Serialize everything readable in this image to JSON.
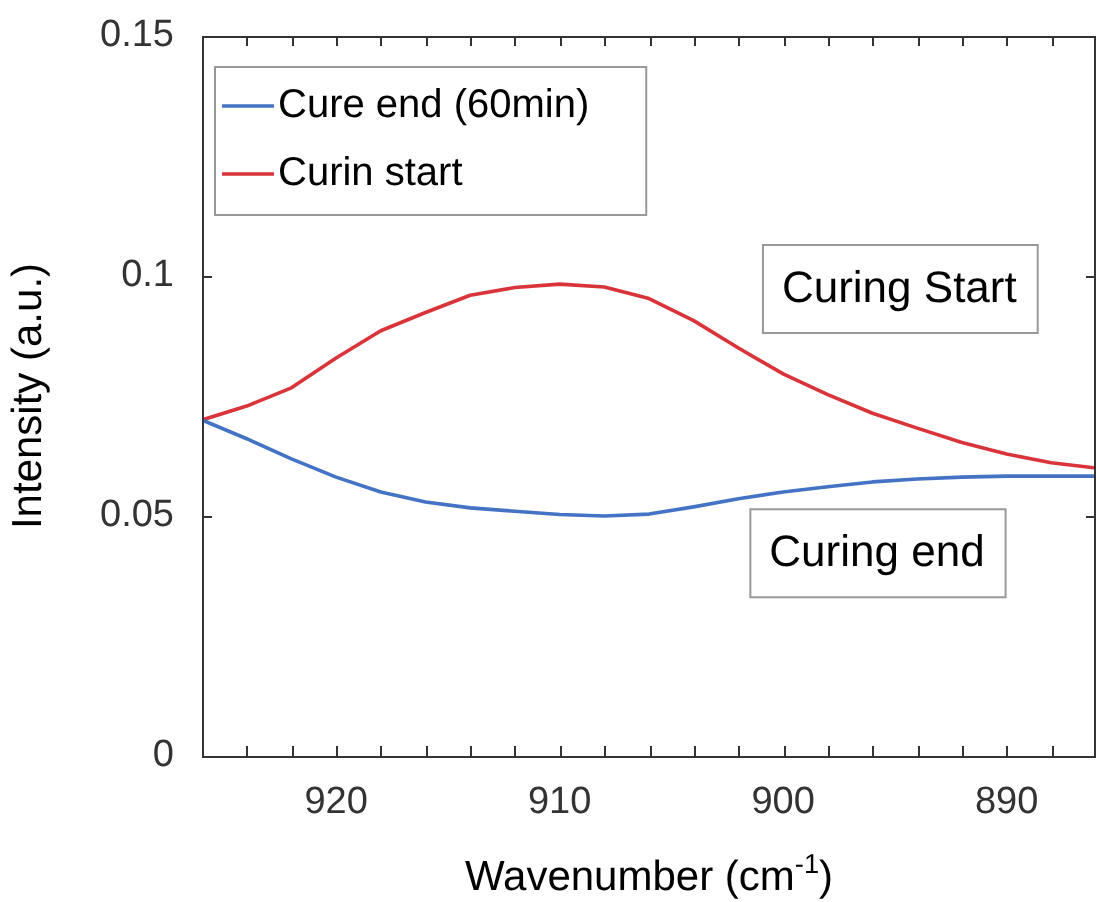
{
  "chart_data": {
    "type": "line",
    "xlabel": "Wavenumber (cm$^{-1}$)",
    "ylabel": "Intensity (a.u.)",
    "x": [
      926,
      924,
      922,
      920,
      918,
      916,
      914,
      912,
      910,
      908,
      906,
      904,
      902,
      900,
      898,
      896,
      894,
      892,
      890,
      888,
      886
    ],
    "series": [
      {
        "name": "Cure end (60min)",
        "color": "#4472c4",
        "values": [
          0.07,
          0.0661,
          0.0619,
          0.0581,
          0.055,
          0.0529,
          0.0517,
          0.051,
          0.0503,
          0.05,
          0.0504,
          0.0519,
          0.0536,
          0.055,
          0.0561,
          0.0571,
          0.0577,
          0.0581,
          0.0583,
          0.0583,
          0.0583
        ]
      },
      {
        "name": "Curin start",
        "color": "#d9343a",
        "values": [
          0.07,
          0.0729,
          0.0767,
          0.0829,
          0.0886,
          0.0924,
          0.096,
          0.0976,
          0.0983,
          0.0977,
          0.0953,
          0.0907,
          0.085,
          0.0796,
          0.0753,
          0.0714,
          0.0683,
          0.0653,
          0.0629,
          0.0611,
          0.06
        ]
      }
    ],
    "xlim": [
      926,
      886
    ],
    "xticks": [
      {
        "value": 924,
        "label": null
      },
      {
        "value": 922,
        "label": null
      },
      920,
      {
        "value": 918,
        "label": null
      },
      {
        "value": 916,
        "label": null
      },
      {
        "value": 914,
        "label": null
      },
      {
        "value": 912,
        "label": null
      },
      910,
      {
        "value": 908,
        "label": null
      },
      {
        "value": 906,
        "label": null
      },
      {
        "value": 904,
        "label": null
      },
      {
        "value": 902,
        "label": null
      },
      900,
      {
        "value": 898,
        "label": null
      },
      {
        "value": 896,
        "label": null
      },
      {
        "value": 894,
        "label": null
      },
      {
        "value": 892,
        "label": null
      },
      890,
      {
        "value": 888,
        "label": null
      }
    ],
    "ylim": [
      0,
      0.15
    ],
    "yticks": [
      0,
      0.05,
      0.1,
      0.15
    ],
    "annotations": [
      "Curing Start",
      "Curing end"
    ],
    "legend": "top left",
    "grid": false,
    "marker": "none",
    "line_style": "solid"
  }
}
